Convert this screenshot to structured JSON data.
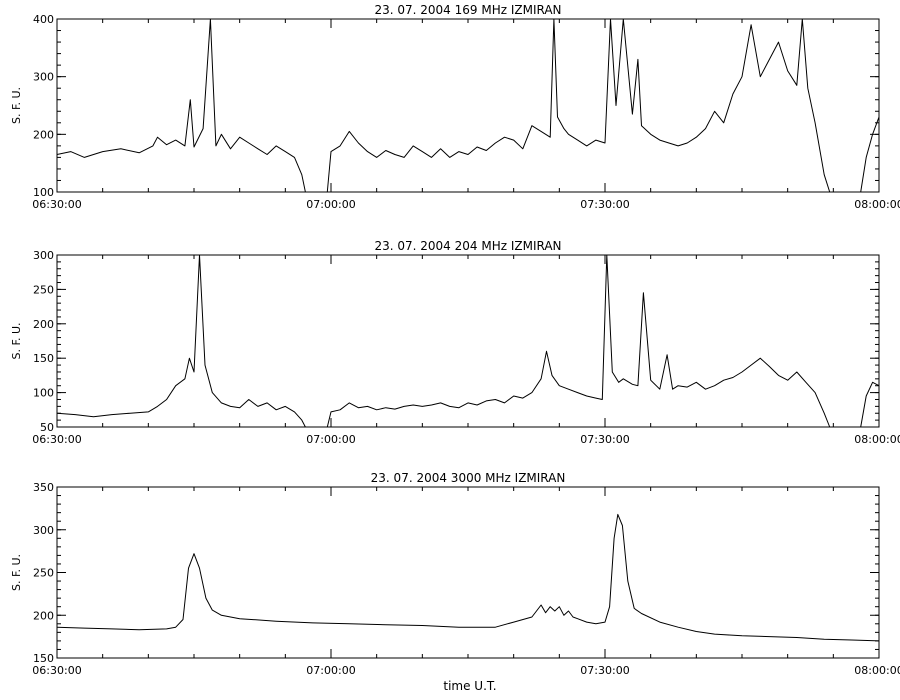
{
  "x_ticks": [
    "06:30:00",
    "07:00:00",
    "07:30:00",
    "08:00:00"
  ],
  "x_range_minutes": [
    0,
    90
  ],
  "xlabel": "time  U.T.",
  "chart_data": [
    {
      "type": "line",
      "title": "23.  07.  2004    169 MHz     IZMIRAN",
      "ylabel": "S. F. U.",
      "x": [
        "06:30:00",
        "07:00:00",
        "07:30:00",
        "08:00:00"
      ],
      "ylim": [
        100,
        400
      ],
      "yticks": [
        100,
        200,
        300,
        400
      ],
      "grid": false,
      "series": [
        {
          "points": [
            [
              0,
              165
            ],
            [
              1.5,
              170
            ],
            [
              3,
              160
            ],
            [
              5,
              170
            ],
            [
              7,
              175
            ],
            [
              9,
              168
            ],
            [
              10.5,
              180
            ],
            [
              11,
              195
            ],
            [
              12,
              182
            ],
            [
              13,
              190
            ],
            [
              14,
              180
            ],
            [
              14.6,
              260
            ],
            [
              15,
              178
            ],
            [
              16,
              210
            ],
            [
              16.8,
              400
            ],
            [
              17.4,
              180
            ],
            [
              18,
              200
            ],
            [
              19,
              175
            ],
            [
              20,
              195
            ],
            [
              21,
              185
            ],
            [
              22,
              175
            ],
            [
              23,
              165
            ],
            [
              24,
              180
            ],
            [
              25,
              170
            ],
            [
              26,
              160
            ],
            [
              26.8,
              130
            ],
            [
              27.2,
              100
            ],
            [
              29.6,
              100
            ],
            [
              30,
              170
            ],
            [
              31,
              180
            ],
            [
              32,
              205
            ],
            [
              33,
              185
            ],
            [
              34,
              170
            ],
            [
              35,
              160
            ],
            [
              36,
              172
            ],
            [
              37,
              165
            ],
            [
              38,
              160
            ],
            [
              39,
              180
            ],
            [
              40,
              170
            ],
            [
              41,
              160
            ],
            [
              42,
              175
            ],
            [
              43,
              160
            ],
            [
              44,
              170
            ],
            [
              45,
              165
            ],
            [
              46,
              178
            ],
            [
              47,
              172
            ],
            [
              48,
              185
            ],
            [
              49,
              195
            ],
            [
              50,
              190
            ],
            [
              51,
              175
            ],
            [
              52,
              215
            ],
            [
              53,
              205
            ],
            [
              54,
              195
            ],
            [
              54.4,
              400
            ],
            [
              54.8,
              230
            ],
            [
              55.5,
              210
            ],
            [
              56,
              200
            ],
            [
              57,
              190
            ],
            [
              58,
              180
            ],
            [
              59,
              190
            ],
            [
              60,
              185
            ],
            [
              60.6,
              400
            ],
            [
              61.2,
              250
            ],
            [
              62,
              400
            ],
            [
              63,
              235
            ],
            [
              63.6,
              330
            ],
            [
              64,
              215
            ],
            [
              65,
              200
            ],
            [
              66,
              190
            ],
            [
              67,
              185
            ],
            [
              68,
              180
            ],
            [
              69,
              185
            ],
            [
              70,
              195
            ],
            [
              71,
              210
            ],
            [
              72,
              240
            ],
            [
              73,
              220
            ],
            [
              74,
              270
            ],
            [
              75,
              300
            ],
            [
              76,
              390
            ],
            [
              77,
              300
            ],
            [
              78,
              330
            ],
            [
              79,
              360
            ],
            [
              80,
              310
            ],
            [
              81,
              285
            ],
            [
              81.6,
              400
            ],
            [
              82.2,
              280
            ],
            [
              83,
              220
            ],
            [
              84,
              130
            ],
            [
              84.6,
              100
            ],
            [
              88,
              100
            ],
            [
              88.6,
              160
            ],
            [
              89.3,
              200
            ],
            [
              90,
              230
            ]
          ]
        }
      ]
    },
    {
      "type": "line",
      "title": "23.  07.  2004    204 MHz     IZMIRAN",
      "ylabel": "S. F. U.",
      "x": [
        "06:30:00",
        "07:00:00",
        "07:30:00",
        "08:00:00"
      ],
      "ylim": [
        50,
        300
      ],
      "yticks": [
        50,
        100,
        150,
        200,
        250,
        300
      ],
      "grid": false,
      "series": [
        {
          "points": [
            [
              0,
              70
            ],
            [
              2,
              68
            ],
            [
              4,
              65
            ],
            [
              6,
              68
            ],
            [
              8,
              70
            ],
            [
              10,
              72
            ],
            [
              11,
              80
            ],
            [
              12,
              90
            ],
            [
              13,
              110
            ],
            [
              14,
              120
            ],
            [
              14.5,
              150
            ],
            [
              15,
              130
            ],
            [
              15.6,
              300
            ],
            [
              16.2,
              140
            ],
            [
              17,
              100
            ],
            [
              18,
              85
            ],
            [
              19,
              80
            ],
            [
              20,
              78
            ],
            [
              21,
              90
            ],
            [
              22,
              80
            ],
            [
              23,
              85
            ],
            [
              24,
              75
            ],
            [
              25,
              80
            ],
            [
              26,
              72
            ],
            [
              26.8,
              60
            ],
            [
              27.2,
              40
            ],
            [
              29.6,
              40
            ],
            [
              30,
              72
            ],
            [
              31,
              75
            ],
            [
              32,
              85
            ],
            [
              33,
              78
            ],
            [
              34,
              80
            ],
            [
              35,
              75
            ],
            [
              36,
              78
            ],
            [
              37,
              76
            ],
            [
              38,
              80
            ],
            [
              39,
              82
            ],
            [
              40,
              80
            ],
            [
              41,
              82
            ],
            [
              42,
              85
            ],
            [
              43,
              80
            ],
            [
              44,
              78
            ],
            [
              45,
              85
            ],
            [
              46,
              82
            ],
            [
              47,
              88
            ],
            [
              48,
              90
            ],
            [
              49,
              85
            ],
            [
              50,
              95
            ],
            [
              51,
              92
            ],
            [
              52,
              100
            ],
            [
              53,
              120
            ],
            [
              53.6,
              160
            ],
            [
              54.2,
              125
            ],
            [
              55,
              110
            ],
            [
              56,
              105
            ],
            [
              57,
              100
            ],
            [
              58,
              95
            ],
            [
              59,
              92
            ],
            [
              59.7,
              90
            ],
            [
              60.2,
              300
            ],
            [
              60.8,
              130
            ],
            [
              61.5,
              115
            ],
            [
              62,
              120
            ],
            [
              63,
              112
            ],
            [
              63.6,
              110
            ],
            [
              64.2,
              245
            ],
            [
              65,
              118
            ],
            [
              66,
              105
            ],
            [
              66.8,
              155
            ],
            [
              67.4,
              105
            ],
            [
              68,
              110
            ],
            [
              69,
              108
            ],
            [
              70,
              115
            ],
            [
              71,
              105
            ],
            [
              72,
              110
            ],
            [
              73,
              118
            ],
            [
              74,
              122
            ],
            [
              75,
              130
            ],
            [
              76,
              140
            ],
            [
              77,
              150
            ],
            [
              78,
              138
            ],
            [
              79,
              125
            ],
            [
              80,
              118
            ],
            [
              81,
              130
            ],
            [
              82,
              115
            ],
            [
              83,
              100
            ],
            [
              84,
              70
            ],
            [
              84.6,
              45
            ],
            [
              88,
              45
            ],
            [
              88.6,
              95
            ],
            [
              89.3,
              115
            ],
            [
              90,
              110
            ]
          ]
        }
      ]
    },
    {
      "type": "line",
      "title": "23.  07.  2004    3000 MHz    IZMIRAN",
      "ylabel": "S. F. U.",
      "x": [
        "06:30:00",
        "07:00:00",
        "07:30:00",
        "08:00:00"
      ],
      "ylim": [
        150,
        350
      ],
      "yticks": [
        150,
        200,
        250,
        300,
        350
      ],
      "grid": false,
      "series": [
        {
          "points": [
            [
              0,
              186
            ],
            [
              3,
              185
            ],
            [
              6,
              184
            ],
            [
              9,
              183
            ],
            [
              12,
              184
            ],
            [
              13,
              186
            ],
            [
              13.8,
              195
            ],
            [
              14.4,
              255
            ],
            [
              15,
              272
            ],
            [
              15.6,
              255
            ],
            [
              16.3,
              220
            ],
            [
              17,
              206
            ],
            [
              18,
              200
            ],
            [
              20,
              196
            ],
            [
              24,
              193
            ],
            [
              28,
              191
            ],
            [
              32,
              190
            ],
            [
              36,
              189
            ],
            [
              40,
              188
            ],
            [
              44,
              186
            ],
            [
              48,
              186
            ],
            [
              50,
              192
            ],
            [
              52,
              198
            ],
            [
              53,
              212
            ],
            [
              53.5,
              203
            ],
            [
              54,
              210
            ],
            [
              54.5,
              205
            ],
            [
              55,
              210
            ],
            [
              55.5,
              200
            ],
            [
              56,
              205
            ],
            [
              56.5,
              198
            ],
            [
              57,
              196
            ],
            [
              58,
              192
            ],
            [
              59,
              190
            ],
            [
              60,
              192
            ],
            [
              60.5,
              210
            ],
            [
              61,
              290
            ],
            [
              61.4,
              318
            ],
            [
              61.9,
              305
            ],
            [
              62.5,
              240
            ],
            [
              63.2,
              208
            ],
            [
              64,
              202
            ],
            [
              66,
              192
            ],
            [
              68,
              186
            ],
            [
              70,
              181
            ],
            [
              72,
              178
            ],
            [
              75,
              176
            ],
            [
              78,
              175
            ],
            [
              81,
              174
            ],
            [
              84,
              172
            ],
            [
              87,
              171
            ],
            [
              90,
              170
            ]
          ]
        }
      ]
    }
  ]
}
